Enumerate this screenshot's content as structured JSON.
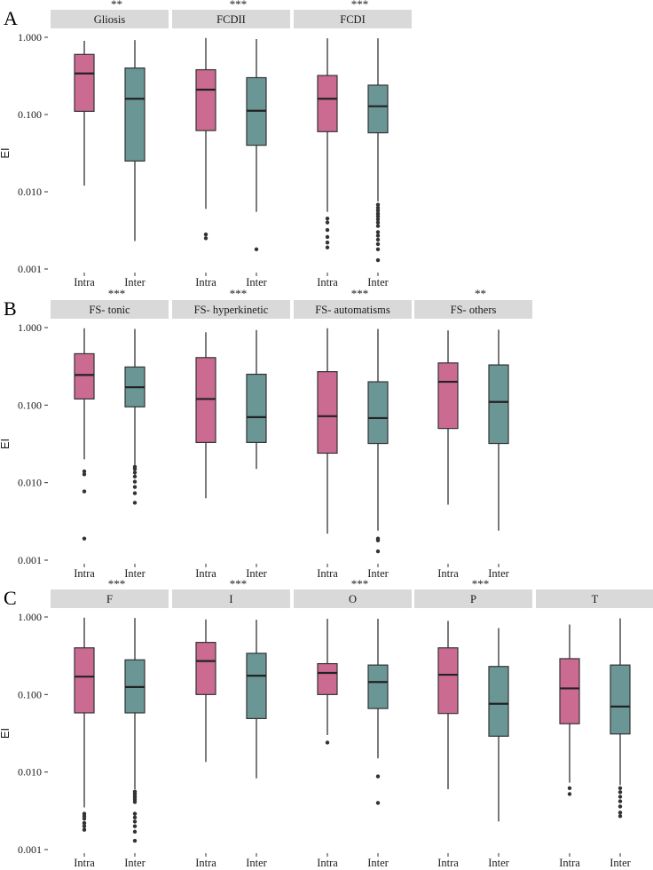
{
  "colors": {
    "intra": "#cc6b92",
    "inter": "#6b9696"
  },
  "chart_data": {
    "type": "boxplot",
    "y_scale": "log10",
    "ylabel": "EI",
    "ylim": [
      0.001,
      1.0
    ],
    "y_ticks": [
      "0.001",
      "0.010",
      "0.100",
      "1.000"
    ],
    "categories": [
      "Intra",
      "Inter"
    ],
    "rows": [
      {
        "letter": "A",
        "facets": [
          {
            "strip": "Gliosis",
            "sig": "**",
            "boxes": [
              {
                "name": "Intra",
                "min": 0.012,
                "q1": 0.11,
                "median": 0.34,
                "q3": 0.6,
                "max": 0.9,
                "outliers": []
              },
              {
                "name": "Inter",
                "min": 0.0023,
                "q1": 0.025,
                "median": 0.16,
                "q3": 0.4,
                "max": 0.92,
                "outliers": []
              }
            ]
          },
          {
            "strip": "FCDII",
            "sig": "***",
            "boxes": [
              {
                "name": "Intra",
                "min": 0.006,
                "q1": 0.062,
                "median": 0.21,
                "q3": 0.38,
                "max": 0.98,
                "outliers": [
                  0.0028,
                  0.0025
                ]
              },
              {
                "name": "Inter",
                "min": 0.0055,
                "q1": 0.04,
                "median": 0.112,
                "q3": 0.3,
                "max": 0.95,
                "outliers": [
                  0.0018
                ]
              }
            ]
          },
          {
            "strip": "FCDI",
            "sig": "***",
            "boxes": [
              {
                "name": "Intra",
                "min": 0.0055,
                "q1": 0.06,
                "median": 0.16,
                "q3": 0.32,
                "max": 0.97,
                "outliers": [
                  0.0045,
                  0.004,
                  0.0032,
                  0.0026,
                  0.0022,
                  0.0019
                ]
              },
              {
                "name": "Inter",
                "min": 0.0075,
                "q1": 0.058,
                "median": 0.128,
                "q3": 0.24,
                "max": 0.97,
                "outliers": [
                  0.0068,
                  0.0062,
                  0.0057,
                  0.0052,
                  0.0048,
                  0.0044,
                  0.004,
                  0.0036,
                  0.003,
                  0.0027,
                  0.0024,
                  0.0021,
                  0.0018,
                  0.0013
                ]
              }
            ]
          }
        ]
      },
      {
        "letter": "B",
        "facets": [
          {
            "strip": "FS- tonic",
            "sig": "***",
            "boxes": [
              {
                "name": "Intra",
                "min": 0.02,
                "q1": 0.12,
                "median": 0.245,
                "q3": 0.46,
                "max": 0.98,
                "outliers": [
                  0.014,
                  0.0128,
                  0.0077,
                  0.0019
                ]
              },
              {
                "name": "Inter",
                "min": 0.017,
                "q1": 0.095,
                "median": 0.17,
                "q3": 0.31,
                "max": 0.96,
                "outliers": [
                  0.016,
                  0.015,
                  0.0135,
                  0.012,
                  0.0103,
                  0.0088,
                  0.0073,
                  0.0055
                ]
              }
            ]
          },
          {
            "strip": "FS- hyperkinetic",
            "sig": "***",
            "boxes": [
              {
                "name": "Intra",
                "min": 0.0063,
                "q1": 0.033,
                "median": 0.12,
                "q3": 0.41,
                "max": 0.87,
                "outliers": []
              },
              {
                "name": "Inter",
                "min": 0.015,
                "q1": 0.033,
                "median": 0.07,
                "q3": 0.25,
                "max": 0.93,
                "outliers": []
              }
            ]
          },
          {
            "strip": "FS- automatisms",
            "sig": "***",
            "boxes": [
              {
                "name": "Intra",
                "min": 0.0022,
                "q1": 0.024,
                "median": 0.072,
                "q3": 0.27,
                "max": 0.98,
                "outliers": []
              },
              {
                "name": "Inter",
                "min": 0.0024,
                "q1": 0.032,
                "median": 0.068,
                "q3": 0.2,
                "max": 0.96,
                "outliers": [
                  0.0019,
                  0.0018,
                  0.0013
                ]
              }
            ]
          },
          {
            "strip": "FS- others",
            "sig": "**",
            "boxes": [
              {
                "name": "Intra",
                "min": 0.0052,
                "q1": 0.05,
                "median": 0.2,
                "q3": 0.35,
                "max": 0.92,
                "outliers": []
              },
              {
                "name": "Inter",
                "min": 0.0024,
                "q1": 0.032,
                "median": 0.11,
                "q3": 0.33,
                "max": 0.94,
                "outliers": []
              }
            ]
          }
        ]
      },
      {
        "letter": "C",
        "facets": [
          {
            "strip": "F",
            "sig": "***",
            "boxes": [
              {
                "name": "Intra",
                "min": 0.0035,
                "q1": 0.058,
                "median": 0.17,
                "q3": 0.4,
                "max": 0.98,
                "outliers": [
                  0.0029,
                  0.0027,
                  0.0025,
                  0.0022,
                  0.002,
                  0.0018
                ]
              },
              {
                "name": "Inter",
                "min": 0.006,
                "q1": 0.058,
                "median": 0.125,
                "q3": 0.28,
                "max": 0.97,
                "outliers": [
                  0.0056,
                  0.0053,
                  0.005,
                  0.0047,
                  0.0044,
                  0.0041,
                  0.0029,
                  0.0026,
                  0.0023,
                  0.002,
                  0.0017,
                  0.0013
                ]
              }
            ]
          },
          {
            "strip": "I",
            "sig": "***",
            "boxes": [
              {
                "name": "Intra",
                "min": 0.0135,
                "q1": 0.1,
                "median": 0.27,
                "q3": 0.47,
                "max": 0.93,
                "outliers": []
              },
              {
                "name": "Inter",
                "min": 0.0083,
                "q1": 0.049,
                "median": 0.175,
                "q3": 0.34,
                "max": 0.92,
                "outliers": []
              }
            ]
          },
          {
            "strip": "O",
            "sig": "***",
            "boxes": [
              {
                "name": "Intra",
                "min": 0.03,
                "q1": 0.1,
                "median": 0.19,
                "q3": 0.25,
                "max": 0.95,
                "outliers": [
                  0.024
                ]
              },
              {
                "name": "Inter",
                "min": 0.015,
                "q1": 0.066,
                "median": 0.145,
                "q3": 0.24,
                "max": 0.95,
                "outliers": [
                  0.0088,
                  0.004
                ]
              }
            ]
          },
          {
            "strip": "P",
            "sig": "***",
            "boxes": [
              {
                "name": "Intra",
                "min": 0.006,
                "q1": 0.057,
                "median": 0.18,
                "q3": 0.4,
                "max": 0.89,
                "outliers": []
              },
              {
                "name": "Inter",
                "min": 0.0023,
                "q1": 0.029,
                "median": 0.076,
                "q3": 0.23,
                "max": 0.72,
                "outliers": []
              }
            ]
          },
          {
            "strip": "T",
            "sig": "",
            "boxes": [
              {
                "name": "Intra",
                "min": 0.0073,
                "q1": 0.042,
                "median": 0.12,
                "q3": 0.29,
                "max": 0.8,
                "outliers": [
                  0.0062,
                  0.0052
                ]
              },
              {
                "name": "Inter",
                "min": 0.0068,
                "q1": 0.031,
                "median": 0.07,
                "q3": 0.24,
                "max": 0.96,
                "outliers": [
                  0.0062,
                  0.0055,
                  0.0048,
                  0.0042,
                  0.0036,
                  0.003,
                  0.0027
                ]
              }
            ]
          }
        ]
      }
    ]
  }
}
